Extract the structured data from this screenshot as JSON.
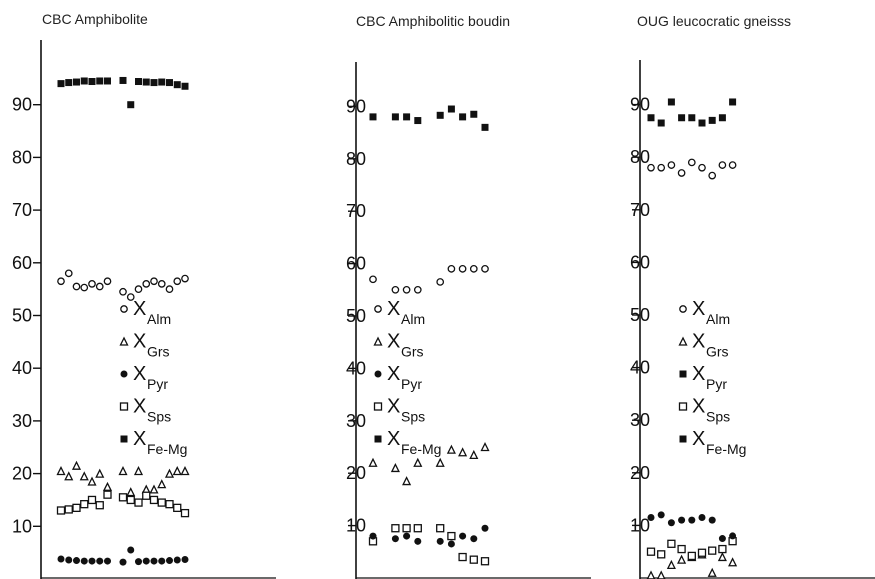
{
  "chart_data": [
    {
      "type": "scatter",
      "title": "CBC Amphibolite",
      "ylim": [
        0,
        100
      ],
      "yticks": [
        10,
        20,
        30,
        40,
        50,
        60,
        70,
        80,
        90
      ],
      "legend": {
        "position": "center",
        "entries": [
          {
            "symbol": "open-circle",
            "main": "X",
            "sub": "Alm"
          },
          {
            "symbol": "open-triangle",
            "main": "X",
            "sub": "Grs"
          },
          {
            "symbol": "filled-circle",
            "main": "X",
            "sub": "Pyr"
          },
          {
            "symbol": "open-square",
            "main": "X",
            "sub": "Sps"
          },
          {
            "symbol": "filled-square",
            "main": "X",
            "sub": "Fe-Mg"
          }
        ]
      },
      "series": [
        {
          "symbol": "filled-square",
          "x": [
            1,
            2,
            3,
            4,
            5,
            6,
            7,
            9,
            10,
            11,
            12,
            13,
            14,
            15,
            16,
            17
          ],
          "values": [
            94,
            94.2,
            94.3,
            94.5,
            94.4,
            94.5,
            94.5,
            94.6,
            90,
            94.4,
            94.3,
            94.2,
            94.3,
            94.2,
            93.8,
            93.5
          ]
        },
        {
          "symbol": "open-circle",
          "x": [
            1,
            2,
            3,
            4,
            5,
            6,
            7,
            9,
            10,
            11,
            12,
            13,
            14,
            15,
            16,
            17
          ],
          "values": [
            56.5,
            58,
            55.5,
            55.3,
            56,
            55.5,
            56.5,
            54.5,
            53.5,
            55,
            56,
            56.5,
            56,
            55,
            56.5,
            57
          ]
        },
        {
          "symbol": "open-triangle",
          "x": [
            1,
            2,
            3,
            4,
            5,
            6,
            7,
            9,
            10,
            11,
            12,
            13,
            14,
            15,
            16,
            17
          ],
          "values": [
            20.5,
            19.5,
            21.5,
            19.5,
            18.5,
            20,
            17.5,
            20.5,
            16.5,
            20.5,
            17,
            17,
            18,
            20,
            20.5,
            20.5
          ]
        },
        {
          "symbol": "open-square",
          "x": [
            1,
            2,
            3,
            4,
            5,
            6,
            7,
            9,
            10,
            11,
            12,
            13,
            14,
            15,
            16,
            17
          ],
          "values": [
            13,
            13.2,
            13.5,
            14.2,
            15,
            14,
            16,
            15.5,
            15,
            14.5,
            15.8,
            15,
            14.5,
            14.2,
            13.5,
            12.5
          ]
        },
        {
          "symbol": "filled-circle",
          "x": [
            1,
            2,
            3,
            4,
            5,
            6,
            7,
            9,
            10,
            11,
            12,
            13,
            14,
            15,
            16,
            17
          ],
          "values": [
            3.8,
            3.6,
            3.5,
            3.4,
            3.4,
            3.4,
            3.4,
            3.2,
            5.5,
            3.3,
            3.4,
            3.4,
            3.4,
            3.5,
            3.6,
            3.7
          ]
        }
      ]
    },
    {
      "type": "scatter",
      "title": "CBC Amphibolitic boudin",
      "ylim": [
        0,
        100
      ],
      "yticks": [
        10,
        20,
        30,
        40,
        50,
        60,
        70,
        80,
        90
      ],
      "legend": {
        "position": "center",
        "entries": [
          {
            "symbol": "open-circle",
            "main": "X",
            "sub": "Alm"
          },
          {
            "symbol": "open-triangle",
            "main": "X",
            "sub": "Grs"
          },
          {
            "symbol": "filled-circle",
            "main": "X",
            "sub": "Pyr"
          },
          {
            "symbol": "open-square",
            "main": "X",
            "sub": "Sps"
          },
          {
            "symbol": "filled-square",
            "main": "X",
            "sub": "Fe-Mg"
          }
        ]
      },
      "series": [
        {
          "symbol": "filled-square",
          "x": [
            1,
            3,
            4,
            5,
            7,
            8,
            9,
            10,
            11
          ],
          "values": [
            88,
            88,
            88,
            87.3,
            88.3,
            89.5,
            88,
            88.5,
            86
          ]
        },
        {
          "symbol": "open-circle",
          "x": [
            1,
            3,
            4,
            5,
            7,
            8,
            9,
            10,
            11
          ],
          "values": [
            57,
            55,
            55,
            55,
            56.5,
            59,
            59,
            59,
            59
          ]
        },
        {
          "symbol": "open-triangle",
          "x": [
            1,
            3,
            4,
            5,
            7,
            8,
            9,
            10,
            11
          ],
          "values": [
            22,
            21,
            18.5,
            22,
            22,
            24.5,
            24,
            23.5,
            25
          ]
        },
        {
          "symbol": "open-square",
          "x": [
            1,
            3,
            4,
            5,
            7,
            8,
            9,
            10,
            11
          ],
          "values": [
            7,
            9.5,
            9.5,
            9.5,
            9.5,
            8,
            4,
            3.5,
            3.2
          ]
        },
        {
          "symbol": "filled-circle",
          "x": [
            1,
            3,
            4,
            5,
            7,
            8,
            9,
            10,
            11
          ],
          "values": [
            8,
            7.5,
            8,
            7,
            7,
            6.5,
            8,
            7.5,
            9.5
          ]
        }
      ]
    },
    {
      "type": "scatter",
      "title": "OUG leucocratic gneisss",
      "ylim": [
        0,
        100
      ],
      "yticks": [
        10,
        20,
        30,
        40,
        50,
        60,
        70,
        80,
        90
      ],
      "legend": {
        "position": "center",
        "entries": [
          {
            "symbol": "open-circle",
            "main": "X",
            "sub": "Alm"
          },
          {
            "symbol": "open-triangle",
            "main": "X",
            "sub": "Grs"
          },
          {
            "symbol": "filled-square",
            "main": "X",
            "sub": "Pyr"
          },
          {
            "symbol": "open-square",
            "main": "X",
            "sub": "Sps"
          },
          {
            "symbol": "filled-square",
            "main": "X",
            "sub": "Fe-Mg"
          }
        ]
      },
      "series": [
        {
          "symbol": "filled-square",
          "x": [
            1,
            2,
            3,
            4,
            5,
            6,
            7,
            8,
            9
          ],
          "values": [
            87.5,
            86.5,
            90.5,
            87.5,
            87.5,
            86.5,
            87,
            87.5,
            90.5
          ]
        },
        {
          "symbol": "open-circle",
          "x": [
            1,
            2,
            3,
            4,
            5,
            6,
            7,
            8,
            9
          ],
          "values": [
            78,
            78,
            78.5,
            77,
            79,
            78,
            76.5,
            78.5,
            78.5
          ]
        },
        {
          "symbol": "open-triangle",
          "x": [
            1,
            2,
            3,
            4,
            5,
            6,
            7,
            8,
            9
          ],
          "values": [
            0.5,
            0.5,
            2.5,
            3.5,
            4,
            4.5,
            1,
            4,
            3
          ]
        },
        {
          "symbol": "open-square",
          "x": [
            1,
            2,
            3,
            4,
            5,
            6,
            7,
            8,
            9
          ],
          "values": [
            5,
            4.5,
            6.5,
            5.5,
            4.2,
            4.8,
            5.2,
            5.5,
            7
          ]
        },
        {
          "symbol": "filled-circle",
          "x": [
            1,
            2,
            3,
            4,
            5,
            6,
            7,
            8,
            9
          ],
          "values": [
            11.5,
            12,
            10.5,
            11,
            11,
            11.5,
            11,
            7.5,
            8
          ]
        }
      ]
    }
  ]
}
